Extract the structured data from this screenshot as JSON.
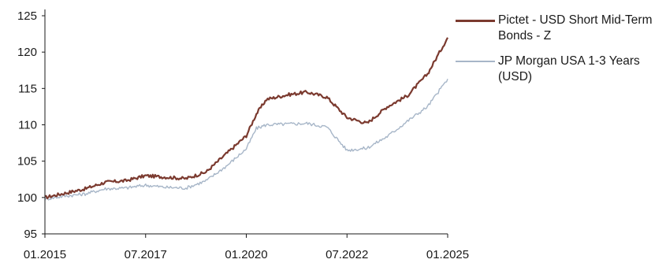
{
  "chart_data": {
    "type": "line",
    "x_start": "01.2015",
    "x_end": "01.2025",
    "x_ticks": [
      "01.2015",
      "07.2017",
      "01.2020",
      "07.2022",
      "01.2025"
    ],
    "ylim": [
      95,
      125
    ],
    "y_ticks": [
      95,
      100,
      105,
      110,
      115,
      120,
      125
    ],
    "grid": false,
    "legend_position": "right",
    "series": [
      {
        "name": "Pictet - USD Short Mid-Term Bonds - Z",
        "color": "#7b3a2f",
        "points": [
          [
            "01.2015",
            100.0
          ],
          [
            "07.2015",
            100.6
          ],
          [
            "01.2016",
            101.2
          ],
          [
            "07.2016",
            102.1
          ],
          [
            "01.2017",
            102.3
          ],
          [
            "07.2017",
            103.0
          ],
          [
            "01.2018",
            102.8
          ],
          [
            "07.2018",
            102.6
          ],
          [
            "01.2019",
            103.5
          ],
          [
            "07.2019",
            106.0
          ],
          [
            "01.2020",
            108.5
          ],
          [
            "04.2020",
            111.5
          ],
          [
            "07.2020",
            113.5
          ],
          [
            "01.2021",
            114.1
          ],
          [
            "07.2021",
            114.5
          ],
          [
            "01.2022",
            113.8
          ],
          [
            "07.2022",
            111.0
          ],
          [
            "01.2023",
            110.2
          ],
          [
            "07.2023",
            112.5
          ],
          [
            "01.2024",
            114.0
          ],
          [
            "07.2024",
            117.0
          ],
          [
            "01.2025",
            122.0
          ]
        ]
      },
      {
        "name": "JP Morgan USA 1-3 Years (USD)",
        "color": "#a7b6c8",
        "points": [
          [
            "01.2015",
            99.8
          ],
          [
            "07.2015",
            100.2
          ],
          [
            "01.2016",
            100.5
          ],
          [
            "07.2016",
            101.2
          ],
          [
            "01.2017",
            101.3
          ],
          [
            "07.2017",
            101.7
          ],
          [
            "01.2018",
            101.4
          ],
          [
            "07.2018",
            101.3
          ],
          [
            "01.2019",
            102.3
          ],
          [
            "07.2019",
            104.3
          ],
          [
            "01.2020",
            106.7
          ],
          [
            "04.2020",
            109.5
          ],
          [
            "07.2020",
            110.0
          ],
          [
            "01.2021",
            110.1
          ],
          [
            "07.2021",
            110.2
          ],
          [
            "01.2022",
            109.7
          ],
          [
            "07.2022",
            106.5
          ],
          [
            "01.2023",
            106.8
          ],
          [
            "07.2023",
            108.4
          ],
          [
            "01.2024",
            110.5
          ],
          [
            "07.2024",
            112.5
          ],
          [
            "01.2025",
            116.3
          ]
        ]
      }
    ]
  }
}
